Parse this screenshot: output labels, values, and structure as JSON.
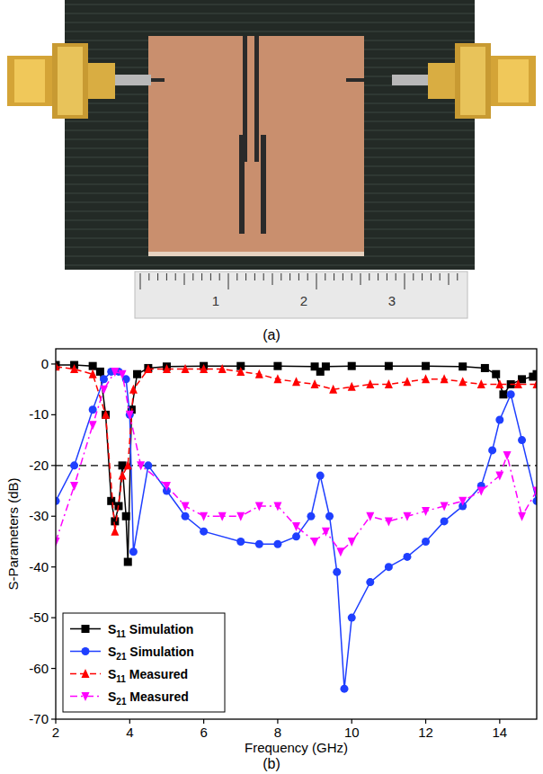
{
  "figure": {
    "panel_labels": [
      "(a)",
      "(b)"
    ],
    "ruler_labels": [
      1,
      2,
      3
    ]
  },
  "chart_data": {
    "type": "line",
    "x_label": "Frequency (GHz)",
    "y_label": "S-Parameters (dB)",
    "xlim": [
      2,
      15
    ],
    "xticks": [
      2,
      4,
      6,
      8,
      10,
      12,
      14
    ],
    "ylim": [
      -70,
      3
    ],
    "yticks": [
      -70,
      -60,
      -50,
      -40,
      -30,
      -20,
      -10,
      0
    ],
    "hline": -20,
    "legend": "lower left",
    "grid": false,
    "series": [
      {
        "name": "S11 Simulation",
        "color": "#000000",
        "marker": "square",
        "line_style": "solid",
        "x": [
          2,
          2.5,
          3,
          3.2,
          3.35,
          3.5,
          3.6,
          3.7,
          3.8,
          3.9,
          3.95,
          4.05,
          4.2,
          4.5,
          5,
          6,
          7,
          8,
          9,
          9.15,
          9.3,
          10,
          11,
          12,
          13,
          13.6,
          13.9,
          14.1,
          14.3,
          14.6,
          14.9,
          15
        ],
        "values": [
          -0.2,
          -0.2,
          -0.4,
          -1.5,
          -10,
          -27,
          -31,
          -28,
          -20,
          -30,
          -39,
          -9,
          -2,
          -0.8,
          -0.5,
          -0.4,
          -0.4,
          -0.4,
          -0.5,
          -1.5,
          -0.5,
          -0.4,
          -0.4,
          -0.4,
          -0.5,
          -0.8,
          -2,
          -6,
          -4,
          -3,
          -2.5,
          -2
        ]
      },
      {
        "name": "S21 Simulation",
        "color": "#1f3fff",
        "marker": "circle",
        "line_style": "solid",
        "x": [
          2,
          2.5,
          3,
          3.3,
          3.5,
          3.7,
          3.9,
          4.0,
          4.1,
          4.5,
          5,
          5.5,
          6,
          7,
          7.5,
          8,
          8.5,
          8.9,
          9.15,
          9.4,
          9.6,
          9.8,
          10,
          10.5,
          11,
          11.5,
          12,
          12.5,
          13,
          13.5,
          13.8,
          14,
          14.3,
          14.6,
          15
        ],
        "values": [
          -27,
          -20,
          -9,
          -3,
          -1.5,
          -1.5,
          -3,
          -10,
          -37,
          -20,
          -25,
          -30,
          -33,
          -35,
          -35.5,
          -35.5,
          -34,
          -30,
          -22,
          -30,
          -41,
          -64,
          -50,
          -43,
          -40,
          -38,
          -35,
          -31,
          -28,
          -24,
          -17,
          -11,
          -6,
          -15,
          -27
        ]
      },
      {
        "name": "S11 Measured",
        "color": "#ff0000",
        "marker": "triangle",
        "line_style": "dash",
        "x": [
          2,
          2.5,
          3,
          3.35,
          3.6,
          3.8,
          3.95,
          4.1,
          4.5,
          5,
          5.5,
          6,
          6.5,
          7,
          7.5,
          8,
          8.5,
          9,
          9.5,
          10,
          10.5,
          11,
          11.5,
          12,
          12.5,
          13,
          13.5,
          14,
          14.5,
          15
        ],
        "values": [
          -0.5,
          -1,
          -2,
          -10,
          -33,
          -22,
          -20,
          -5,
          -1,
          -1,
          -1,
          -1,
          -1,
          -1.5,
          -2,
          -3,
          -3.5,
          -4,
          -5,
          -4.5,
          -4,
          -4,
          -3.5,
          -3,
          -3,
          -3.5,
          -4,
          -4,
          -4,
          -4
        ]
      },
      {
        "name": "S21 Measured",
        "color": "#ff00ff",
        "marker": "triangle-down",
        "line_style": "dashdot",
        "x": [
          2,
          2.5,
          3,
          3.3,
          3.6,
          3.8,
          4.0,
          4.3,
          5,
          5.5,
          6,
          6.5,
          7,
          7.5,
          8,
          8.5,
          9,
          9.3,
          9.7,
          10,
          10.5,
          11,
          11.5,
          12,
          12.5,
          13,
          13.5,
          14,
          14.2,
          14.6,
          15
        ],
        "values": [
          -35,
          -24,
          -12,
          -5,
          -1.5,
          -2,
          -10,
          -20,
          -24,
          -28,
          -30,
          -30,
          -30,
          -28,
          -28,
          -32,
          -35,
          -33,
          -37,
          -35,
          -30,
          -31,
          -30,
          -29,
          -28,
          -27,
          -25,
          -22,
          -18,
          -30,
          -25
        ]
      }
    ]
  }
}
